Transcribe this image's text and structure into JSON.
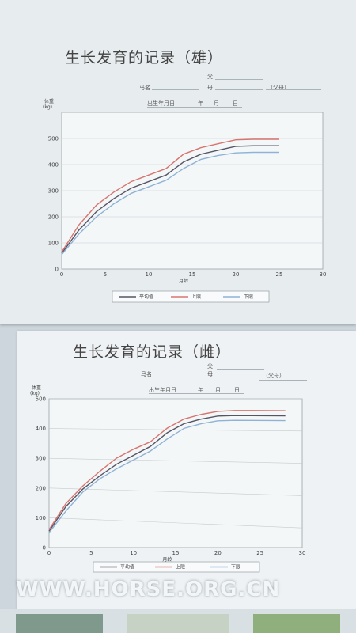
{
  "watermark": "WWW.HORSE.ORG.CN",
  "chart_data": [
    {
      "type": "line",
      "title": "生长发育的记录（雄）",
      "fields": {
        "name": "马名",
        "father": "父",
        "mother": "母",
        "mother_father": "（父母）",
        "birth_date": "出生年月日",
        "year": "年",
        "month": "月",
        "day": "日"
      },
      "ylabel": "体重\n(kg)",
      "xlabel": "月龄",
      "xlim": [
        0,
        30
      ],
      "ylim": [
        0,
        600
      ],
      "xticks": [
        "0",
        "5",
        "10",
        "15",
        "20",
        "25",
        "30"
      ],
      "yticks": [
        "0",
        "100",
        "200",
        "300",
        "400",
        "500"
      ],
      "grid": true,
      "legend_position": "bottom",
      "series": [
        {
          "name": "平均值",
          "color": "#555566",
          "x": [
            0,
            2,
            4,
            6,
            8,
            10,
            12,
            14,
            16,
            18,
            20,
            22,
            24,
            25
          ],
          "y": [
            60,
            150,
            220,
            270,
            310,
            335,
            360,
            410,
            440,
            455,
            470,
            472,
            472,
            472
          ]
        },
        {
          "name": "上限",
          "color": "#d7746f",
          "x": [
            0,
            2,
            4,
            6,
            8,
            10,
            12,
            14,
            16,
            18,
            20,
            22,
            24,
            25
          ],
          "y": [
            65,
            170,
            245,
            295,
            335,
            360,
            385,
            440,
            465,
            480,
            495,
            497,
            497,
            497
          ]
        },
        {
          "name": "下限",
          "color": "#8fb2d6",
          "x": [
            0,
            2,
            4,
            6,
            8,
            10,
            12,
            14,
            16,
            18,
            20,
            22,
            24,
            25
          ],
          "y": [
            55,
            135,
            200,
            250,
            290,
            315,
            340,
            385,
            420,
            435,
            445,
            447,
            447,
            447
          ]
        }
      ]
    },
    {
      "type": "line",
      "title": "生长发育的记录（雌）",
      "fields": {
        "name": "马名",
        "father": "父",
        "mother": "母",
        "mother_father": "（父母）",
        "birth_date": "出生年月日",
        "year": "年",
        "month": "月",
        "day": "日"
      },
      "ylabel": "体重\n(kg)",
      "xlabel": "月龄",
      "xlim": [
        0,
        30
      ],
      "ylim": [
        0,
        500
      ],
      "xticks": [
        "0",
        "5",
        "10",
        "15",
        "20",
        "25",
        "30"
      ],
      "yticks": [
        "0",
        "100",
        "200",
        "300",
        "400",
        "500"
      ],
      "grid": true,
      "legend_position": "bottom",
      "series": [
        {
          "name": "平均值",
          "color": "#555566",
          "x": [
            0,
            2,
            4,
            6,
            8,
            10,
            12,
            14,
            16,
            18,
            20,
            22,
            24,
            26,
            28
          ],
          "y": [
            55,
            140,
            200,
            245,
            285,
            315,
            345,
            390,
            420,
            435,
            445,
            447,
            447,
            447,
            447
          ]
        },
        {
          "name": "上限",
          "color": "#d7746f",
          "x": [
            0,
            2,
            4,
            6,
            8,
            10,
            12,
            14,
            16,
            18,
            20,
            22,
            24,
            26,
            28
          ],
          "y": [
            60,
            150,
            210,
            260,
            305,
            335,
            360,
            405,
            435,
            450,
            460,
            463,
            463,
            463,
            463
          ]
        },
        {
          "name": "下限",
          "color": "#8fb2d6",
          "x": [
            0,
            2,
            4,
            6,
            8,
            10,
            12,
            14,
            16,
            18,
            20,
            22,
            24,
            26,
            28
          ],
          "y": [
            50,
            125,
            190,
            235,
            270,
            300,
            330,
            370,
            405,
            420,
            430,
            432,
            432,
            432,
            432
          ]
        }
      ]
    }
  ]
}
